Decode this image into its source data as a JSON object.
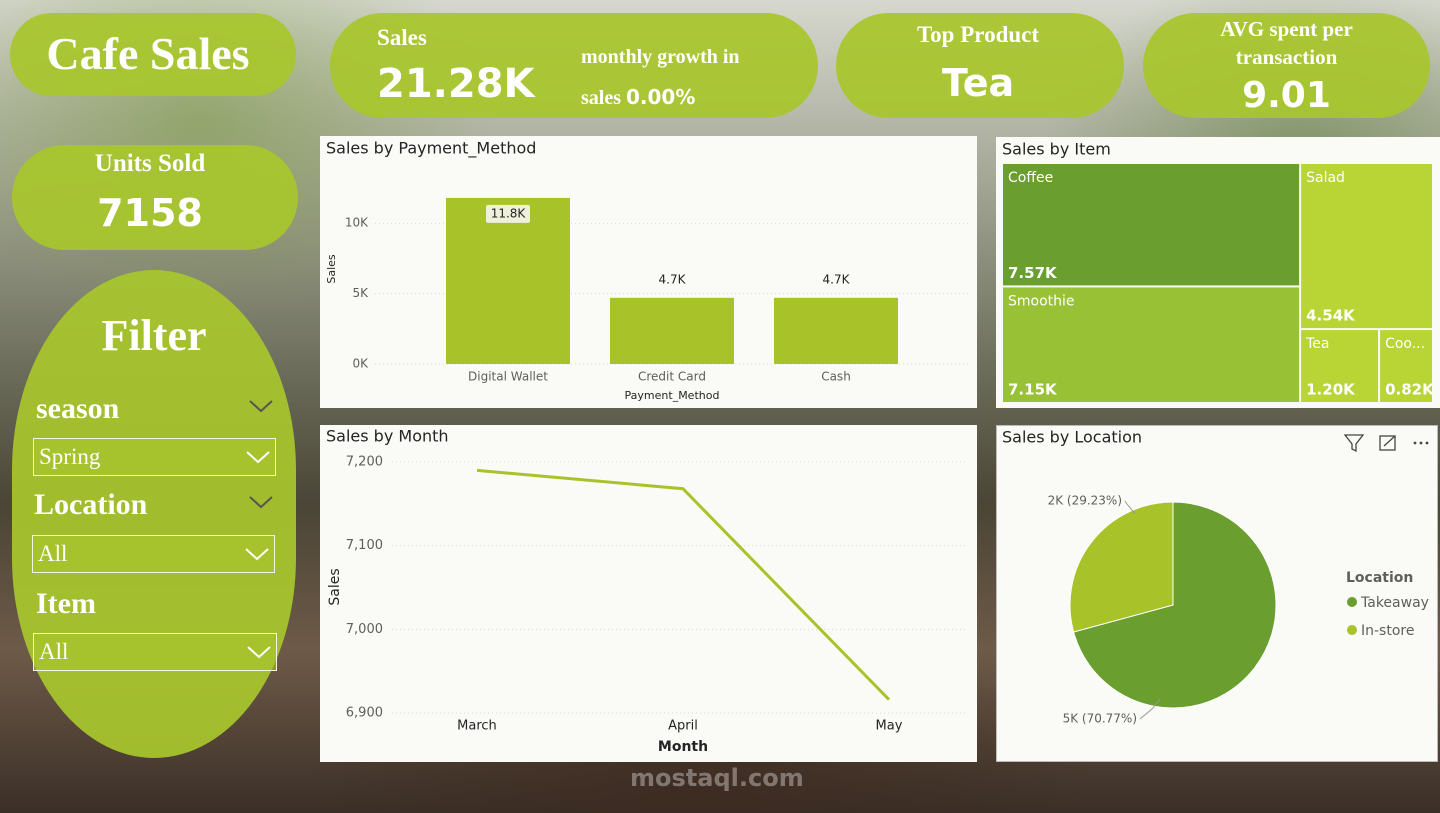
{
  "header": {
    "title": "Cafe Sales"
  },
  "cards": {
    "sales": {
      "label": "Sales",
      "value": "21.28K"
    },
    "growth": {
      "label": "monthly growth in sales",
      "value": "0.00%"
    },
    "top_product": {
      "label": "Top Product",
      "value": "Tea"
    },
    "avg_spent": {
      "label": "AVG spent per transaction",
      "value": 9.01
    },
    "units_sold": {
      "label": "Units Sold",
      "value": 7158
    }
  },
  "filters": {
    "title": "Filter",
    "items": [
      {
        "label": "season",
        "selected": "Spring"
      },
      {
        "label": "Location",
        "selected": "All"
      },
      {
        "label": "Item",
        "selected": "All"
      }
    ]
  },
  "watermark": "mostaql.com",
  "chart_data": [
    {
      "type": "bar",
      "title": "Sales by Payment_Method",
      "x_label": "Payment_Method",
      "y_label": "Sales",
      "categories": [
        "Digital Wallet",
        "Credit Card",
        "Cash"
      ],
      "values": [
        11800,
        4700,
        4700
      ],
      "value_labels": [
        "11.8K",
        "4.7K",
        "4.7K"
      ],
      "color": "#a8c22a",
      "ylim": [
        0,
        13000
      ],
      "yticks": [
        {
          "value": 0,
          "label": "0K"
        },
        {
          "value": 5000,
          "label": "5K"
        },
        {
          "value": 10000,
          "label": "10K"
        }
      ],
      "grid": true
    },
    {
      "type": "treemap",
      "title": "Sales by Item",
      "categories": [
        "Coffee",
        "Smoothie",
        "Salad",
        "Tea",
        "Coo..."
      ],
      "values": [
        7570,
        7150,
        4540,
        1200,
        820
      ],
      "value_labels": [
        "7.57K",
        "7.15K",
        "4.54K",
        "1.20K",
        "0.82K"
      ],
      "colors": [
        "#6a9f30",
        "#98c136",
        "#b8d435",
        "#b8d435",
        "#b8d435"
      ]
    },
    {
      "type": "line",
      "title": "Sales by Month",
      "x_label": "Month",
      "y_label": "Sales",
      "categories": [
        "March",
        "April",
        "May"
      ],
      "values": [
        7190,
        7168,
        6916
      ],
      "color": "#a8c22a",
      "ylim": [
        6900,
        7210
      ],
      "yticks": [
        {
          "value": 6900,
          "label": "6,900"
        },
        {
          "value": 7000,
          "label": "7,000"
        },
        {
          "value": 7100,
          "label": "7,100"
        },
        {
          "value": 7200,
          "label": "7,200"
        }
      ],
      "grid": true
    },
    {
      "type": "pie",
      "title": "Sales by Location",
      "legend_title": "Location",
      "legend": "right",
      "categories": [
        "Takeaway",
        "In-store"
      ],
      "values": [
        5066,
        2092
      ],
      "value_labels": [
        "5K (70.77%)",
        "2K (29.23%)"
      ],
      "colors": [
        "#6a9f30",
        "#a8c22a"
      ]
    }
  ]
}
